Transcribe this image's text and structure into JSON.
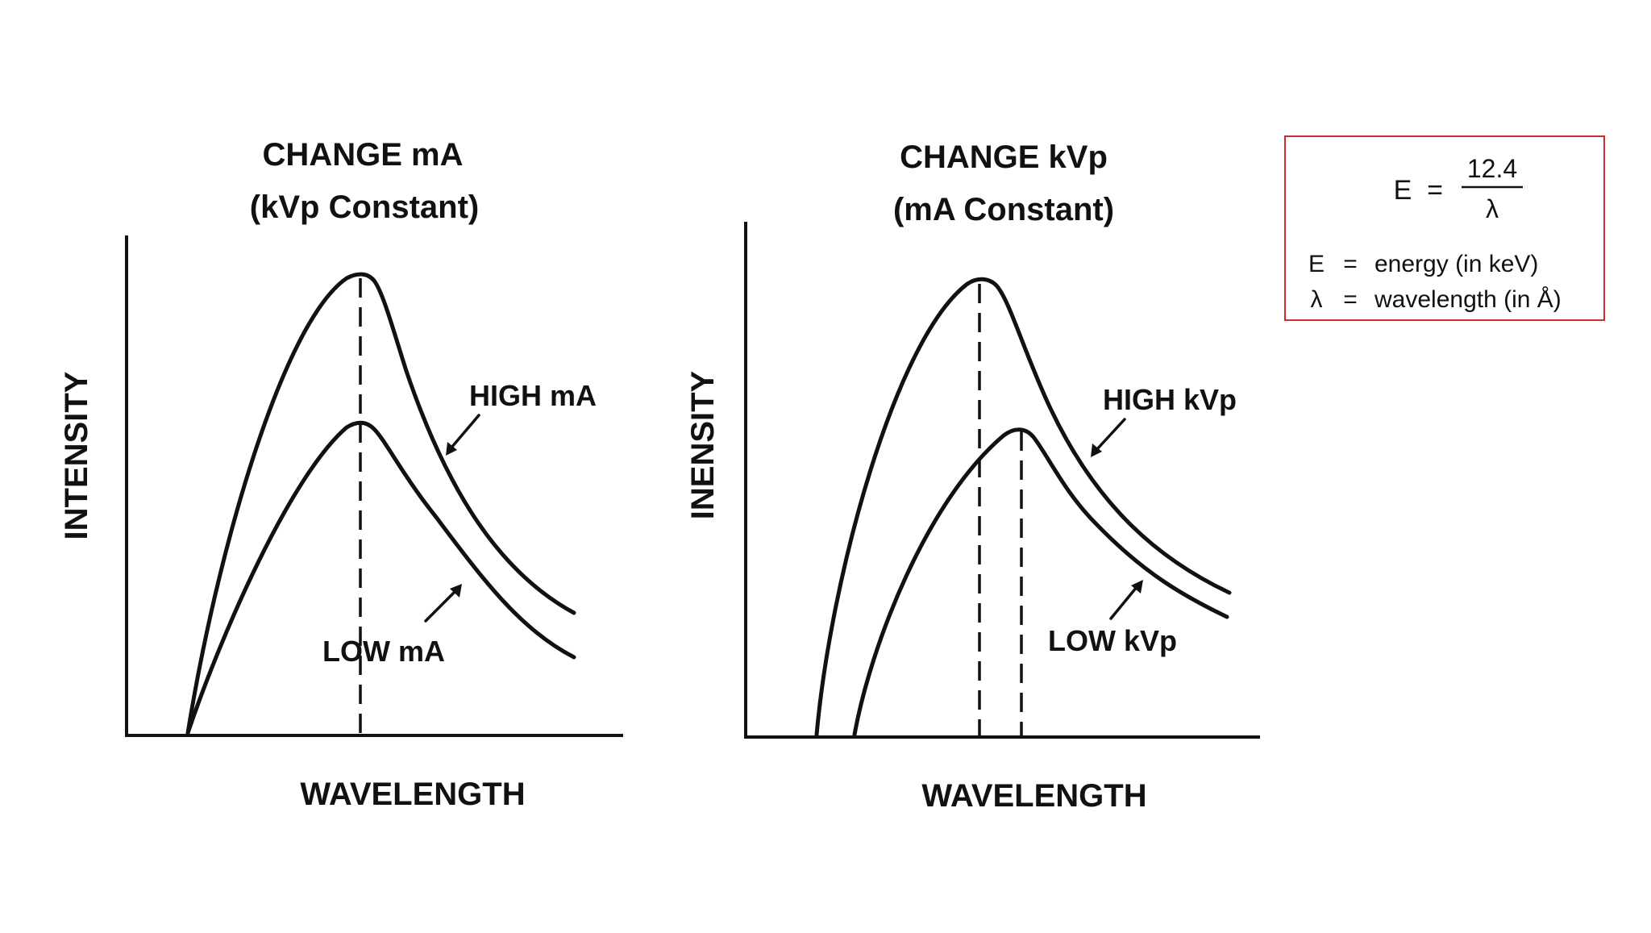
{
  "left_panel": {
    "title_line1": "CHANGE mA",
    "title_line2": "(kVp Constant)",
    "y_axis_label": "INTENSITY",
    "x_axis_label": "WAVELENGTH",
    "high_curve_label": "HIGH mA",
    "low_curve_label": "LOW mA"
  },
  "right_panel": {
    "title_line1": "CHANGE kVp",
    "title_line2": "(mA Constant)",
    "y_axis_label": "INENSITY",
    "x_axis_label": "WAVELENGTH",
    "high_curve_label": "HIGH kVp",
    "low_curve_label": "LOW kVp"
  },
  "formula_box": {
    "lhs": "E",
    "equals": "=",
    "numerator": "12.4",
    "denominator": "λ",
    "def1_symbol": "E",
    "def1_equals": "=",
    "def1_text": "energy (in keV)",
    "def2_symbol": "λ",
    "def2_equals": "=",
    "def2_text": "wavelength (in Å)",
    "border_color": "#d12b2b"
  }
}
